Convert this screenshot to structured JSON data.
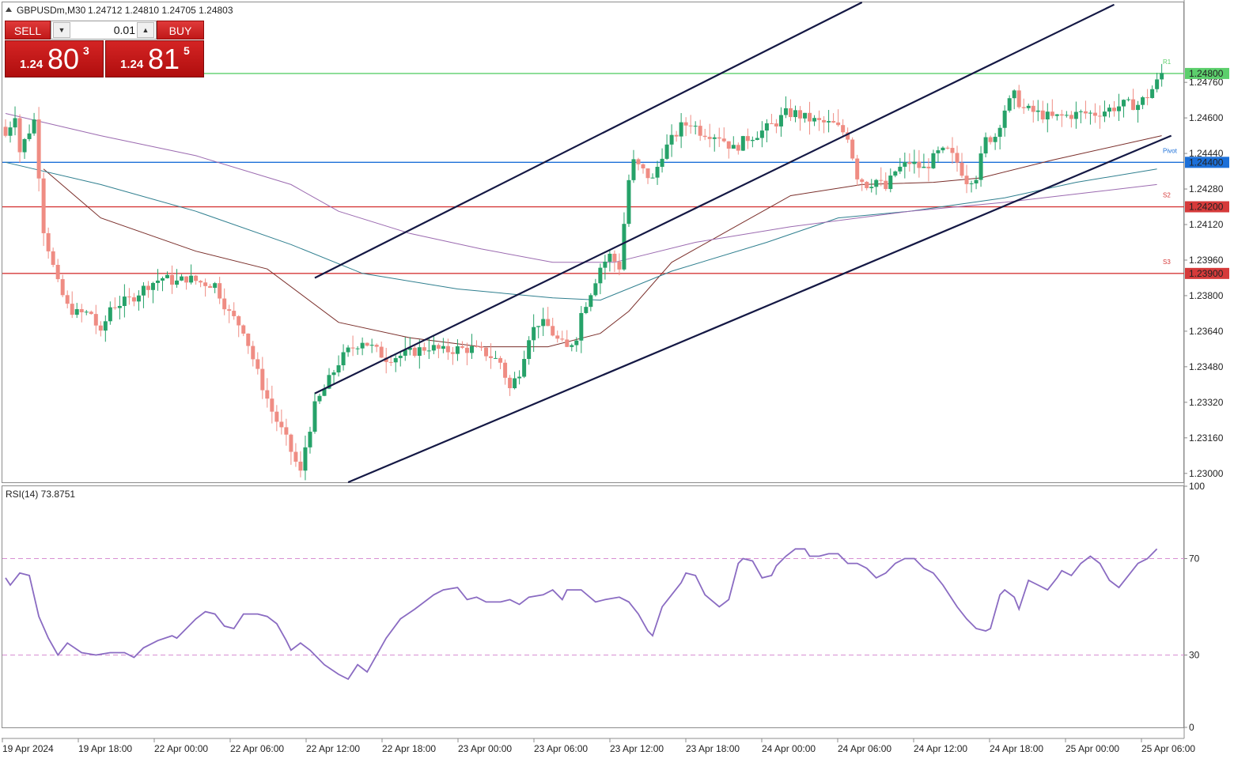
{
  "header": {
    "symbol_label": "GBPUSDm,M30",
    "ohlc": "1.24712 1.24810 1.24705 1.24803"
  },
  "trade_panel": {
    "sell_label": "SELL",
    "buy_label": "BUY",
    "lot": "0.01",
    "sell_price": {
      "prefix": "1.24",
      "big": "80",
      "sup": "3"
    },
    "buy_price": {
      "prefix": "1.24",
      "big": "81",
      "sup": "5"
    }
  },
  "colors": {
    "bull": "#26a269",
    "bear": "#ef8c83",
    "pivot": "#1b6fd8",
    "support": "#d63a3a",
    "resistance": "#5ccf6c",
    "channel": "#141844",
    "ma_brown": "#7a2e2a",
    "ma_teal": "#2f7f8f",
    "ma_purple": "#9b6ab0",
    "rsi_line": "#8a6bc2",
    "rsi_level": "#d88fd3"
  },
  "chart_data": [
    {
      "type": "candlestick",
      "symbol": "GBPUSDm",
      "timeframe": "M30",
      "ylim": [
        1.2296,
        1.2512
      ],
      "y_ticks": [
        "1.24760",
        "1.24600",
        "1.24440",
        "1.24280",
        "1.24120",
        "1.23960",
        "1.23800",
        "1.23640",
        "1.23480",
        "1.23320",
        "1.23160",
        "1.23000"
      ],
      "x_ticks": [
        "19 Apr 2024",
        "19 Apr 18:00",
        "22 Apr 00:00",
        "22 Apr 06:00",
        "22 Apr 12:00",
        "22 Apr 18:00",
        "23 Apr 00:00",
        "23 Apr 06:00",
        "23 Apr 12:00",
        "23 Apr 18:00",
        "24 Apr 00:00",
        "24 Apr 06:00",
        "24 Apr 12:00",
        "24 Apr 18:00",
        "25 Apr 00:00",
        "25 Apr 06:00"
      ],
      "price_levels": [
        {
          "value": 1.248,
          "label": "1.24800",
          "tag": "R1",
          "color": "#5ccf6c"
        },
        {
          "value": 1.244,
          "label": "1.24400",
          "tag": "Pivot",
          "color": "#1b6fd8"
        },
        {
          "value": 1.242,
          "label": "1.24200",
          "tag": "S2",
          "color": "#d63a3a"
        },
        {
          "value": 1.239,
          "label": "1.23900",
          "tag": "S3",
          "color": "#d63a3a"
        }
      ],
      "close_path": [
        [
          0,
          1.2452
        ],
        [
          2,
          1.2462
        ],
        [
          3,
          1.2445
        ],
        [
          6,
          1.2459
        ],
        [
          7,
          1.2435
        ],
        [
          8,
          1.241
        ],
        [
          10,
          1.2393
        ],
        [
          11,
          1.2385
        ],
        [
          13,
          1.2375
        ],
        [
          15,
          1.2372
        ],
        [
          18,
          1.2372
        ],
        [
          20,
          1.2362
        ],
        [
          22,
          1.2375
        ],
        [
          26,
          1.2378
        ],
        [
          30,
          1.2385
        ],
        [
          33,
          1.2388
        ],
        [
          36,
          1.2386
        ],
        [
          38,
          1.2388
        ],
        [
          41,
          1.2386
        ],
        [
          44,
          1.2385
        ],
        [
          47,
          1.2372
        ],
        [
          50,
          1.2365
        ],
        [
          53,
          1.2345
        ],
        [
          56,
          1.2328
        ],
        [
          59,
          1.2315
        ],
        [
          61,
          1.2305
        ],
        [
          62,
          1.23
        ],
        [
          63,
          1.2312
        ],
        [
          65,
          1.233
        ],
        [
          68,
          1.2342
        ],
        [
          70,
          1.235
        ],
        [
          72,
          1.2355
        ],
        [
          75,
          1.236
        ],
        [
          78,
          1.2355
        ],
        [
          80,
          1.2352
        ],
        [
          83,
          1.2353
        ],
        [
          86,
          1.2355
        ],
        [
          89,
          1.2357
        ],
        [
          92,
          1.2355
        ],
        [
          95,
          1.2356
        ],
        [
          98,
          1.2356
        ],
        [
          101,
          1.2354
        ],
        [
          104,
          1.235
        ],
        [
          106,
          1.2338
        ],
        [
          108,
          1.2346
        ],
        [
          110,
          1.2362
        ],
        [
          112,
          1.2368
        ],
        [
          114,
          1.2366
        ],
        [
          116,
          1.236
        ],
        [
          118,
          1.2356
        ],
        [
          120,
          1.2362
        ],
        [
          121,
          1.2372
        ],
        [
          123,
          1.2382
        ],
        [
          125,
          1.2393
        ],
        [
          127,
          1.2398
        ],
        [
          129,
          1.2393
        ],
        [
          131,
          1.2432
        ],
        [
          132,
          1.244
        ],
        [
          134,
          1.2436
        ],
        [
          136,
          1.2432
        ],
        [
          138,
          1.2444
        ],
        [
          140,
          1.245
        ],
        [
          142,
          1.2456
        ],
        [
          144,
          1.2458
        ],
        [
          146,
          1.2454
        ],
        [
          150,
          1.2452
        ],
        [
          153,
          1.2446
        ],
        [
          156,
          1.2451
        ],
        [
          159,
          1.2454
        ],
        [
          162,
          1.2458
        ],
        [
          164,
          1.2462
        ],
        [
          166,
          1.2462
        ],
        [
          168,
          1.246
        ],
        [
          171,
          1.2458
        ],
        [
          174,
          1.2457
        ],
        [
          177,
          1.2452
        ],
        [
          179,
          1.2434
        ],
        [
          181,
          1.243
        ],
        [
          183,
          1.2432
        ],
        [
          185,
          1.2428
        ],
        [
          187,
          1.2436
        ],
        [
          190,
          1.244
        ],
        [
          193,
          1.2437
        ],
        [
          196,
          1.2444
        ],
        [
          198,
          1.2445
        ],
        [
          200,
          1.244
        ],
        [
          202,
          1.2432
        ],
        [
          204,
          1.2434
        ],
        [
          206,
          1.245
        ],
        [
          208,
          1.2452
        ],
        [
          210,
          1.2464
        ],
        [
          212,
          1.247
        ],
        [
          214,
          1.2464
        ],
        [
          217,
          1.2462
        ],
        [
          220,
          1.246
        ],
        [
          223,
          1.2461
        ],
        [
          226,
          1.2462
        ],
        [
          229,
          1.2462
        ],
        [
          232,
          1.2464
        ],
        [
          235,
          1.2466
        ],
        [
          238,
          1.2466
        ],
        [
          240,
          1.247
        ],
        [
          242,
          1.2476
        ],
        [
          243,
          1.248
        ]
      ],
      "moving_averages": [
        {
          "color": "#7a2e2a",
          "points": [
            [
              8,
              1.2437
            ],
            [
              20,
              1.2415
            ],
            [
              40,
              1.24
            ],
            [
              55,
              1.2392
            ],
            [
              70,
              1.2368
            ],
            [
              85,
              1.2361
            ],
            [
              100,
              1.2357
            ],
            [
              114,
              1.2357
            ],
            [
              125,
              1.2363
            ],
            [
              131,
              1.2373
            ],
            [
              140,
              1.2395
            ],
            [
              155,
              1.2413
            ],
            [
              165,
              1.2425
            ],
            [
              180,
              1.243
            ],
            [
              195,
              1.2431
            ],
            [
              205,
              1.2433
            ],
            [
              220,
              1.2441
            ],
            [
              243,
              1.2452
            ]
          ]
        },
        {
          "color": "#2f7f8f",
          "points": [
            [
              0,
              1.244
            ],
            [
              20,
              1.243
            ],
            [
              40,
              1.2418
            ],
            [
              60,
              1.2403
            ],
            [
              75,
              1.239
            ],
            [
              95,
              1.2383
            ],
            [
              115,
              1.2379
            ],
            [
              125,
              1.2378
            ],
            [
              140,
              1.2391
            ],
            [
              160,
              1.2404
            ],
            [
              175,
              1.2415
            ],
            [
              190,
              1.2418
            ],
            [
              210,
              1.2424
            ],
            [
              225,
              1.2431
            ],
            [
              242,
              1.2437
            ]
          ]
        },
        {
          "color": "#9b6ab0",
          "points": [
            [
              0,
              1.2462
            ],
            [
              20,
              1.2452
            ],
            [
              40,
              1.2443
            ],
            [
              60,
              1.243
            ],
            [
              70,
              1.2418
            ],
            [
              85,
              1.2408
            ],
            [
              100,
              1.2401
            ],
            [
              115,
              1.2395
            ],
            [
              128,
              1.2395
            ],
            [
              145,
              1.2404
            ],
            [
              165,
              1.2411
            ],
            [
              190,
              1.2418
            ],
            [
              210,
              1.2422
            ],
            [
              230,
              1.2427
            ],
            [
              242,
              1.243
            ]
          ]
        }
      ],
      "channel_lines": [
        {
          "from": [
            65,
            1.2388
          ],
          "to": [
            180,
            1.2512
          ]
        },
        {
          "from": [
            65,
            1.2336
          ],
          "to": [
            233,
            1.2511
          ]
        },
        {
          "from": [
            72,
            1.2296
          ],
          "to": [
            245,
            1.2452
          ]
        }
      ]
    },
    {
      "type": "line",
      "title": "RSI(14) 73.8751",
      "ylim": [
        0,
        100
      ],
      "y_ticks": [
        "100",
        "70",
        "30",
        "0"
      ],
      "levels": [
        70,
        30
      ],
      "values": [
        [
          0,
          62
        ],
        [
          1,
          59
        ],
        [
          3,
          64
        ],
        [
          5,
          63
        ],
        [
          7,
          46
        ],
        [
          9,
          37
        ],
        [
          11,
          30
        ],
        [
          13,
          35
        ],
        [
          16,
          31
        ],
        [
          19,
          30
        ],
        [
          22,
          31
        ],
        [
          25,
          31
        ],
        [
          27,
          29
        ],
        [
          29,
          33
        ],
        [
          32,
          36
        ],
        [
          35,
          38
        ],
        [
          36,
          37
        ],
        [
          40,
          45
        ],
        [
          42,
          48
        ],
        [
          44,
          47
        ],
        [
          46,
          42
        ],
        [
          48,
          41
        ],
        [
          50,
          47
        ],
        [
          53,
          47
        ],
        [
          55,
          46
        ],
        [
          57,
          43
        ],
        [
          59,
          36
        ],
        [
          60,
          32
        ],
        [
          62,
          35
        ],
        [
          64,
          32
        ],
        [
          67,
          26
        ],
        [
          70,
          22
        ],
        [
          72,
          20
        ],
        [
          74,
          26
        ],
        [
          76,
          23
        ],
        [
          80,
          37
        ],
        [
          83,
          45
        ],
        [
          86,
          49
        ],
        [
          90,
          55
        ],
        [
          92,
          57
        ],
        [
          95,
          58
        ],
        [
          97,
          53
        ],
        [
          99,
          54
        ],
        [
          101,
          52
        ],
        [
          104,
          52
        ],
        [
          106,
          53
        ],
        [
          108,
          51
        ],
        [
          110,
          54
        ],
        [
          113,
          55
        ],
        [
          115,
          57
        ],
        [
          117,
          53
        ],
        [
          118,
          57
        ],
        [
          121,
          57
        ],
        [
          124,
          52
        ],
        [
          126,
          53
        ],
        [
          129,
          54
        ],
        [
          131,
          52
        ],
        [
          133,
          47
        ],
        [
          135,
          40
        ],
        [
          136,
          38
        ],
        [
          138,
          50
        ],
        [
          140,
          55
        ],
        [
          142,
          60
        ],
        [
          143,
          64
        ],
        [
          145,
          63
        ],
        [
          147,
          55
        ],
        [
          150,
          50
        ],
        [
          152,
          53
        ],
        [
          154,
          68
        ],
        [
          155,
          70
        ],
        [
          157,
          69
        ],
        [
          159,
          62
        ],
        [
          161,
          63
        ],
        [
          162,
          67
        ],
        [
          164,
          71
        ],
        [
          166,
          74
        ],
        [
          168,
          74
        ],
        [
          169,
          71
        ],
        [
          171,
          71
        ],
        [
          173,
          72
        ],
        [
          175,
          72
        ],
        [
          177,
          68
        ],
        [
          179,
          68
        ],
        [
          181,
          66
        ],
        [
          183,
          62
        ],
        [
          185,
          64
        ],
        [
          187,
          68
        ],
        [
          189,
          70
        ],
        [
          191,
          70
        ],
        [
          193,
          66
        ],
        [
          195,
          64
        ],
        [
          197,
          59
        ],
        [
          200,
          50
        ],
        [
          202,
          45
        ],
        [
          204,
          41
        ],
        [
          206,
          40
        ],
        [
          207,
          41
        ],
        [
          209,
          55
        ],
        [
          210,
          57
        ],
        [
          212,
          54
        ],
        [
          213,
          49
        ],
        [
          215,
          61
        ],
        [
          217,
          59
        ],
        [
          219,
          57
        ],
        [
          221,
          62
        ],
        [
          222,
          65
        ],
        [
          224,
          63
        ],
        [
          226,
          68
        ],
        [
          228,
          71
        ],
        [
          230,
          68
        ],
        [
          232,
          61
        ],
        [
          234,
          58
        ],
        [
          236,
          63
        ],
        [
          238,
          68
        ],
        [
          240,
          70
        ],
        [
          242,
          74
        ]
      ]
    }
  ]
}
